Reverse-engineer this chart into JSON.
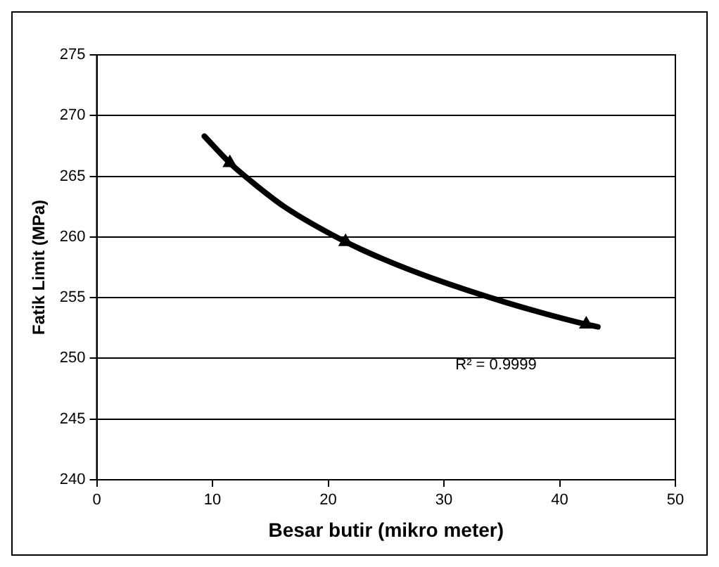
{
  "chart_data": {
    "type": "scatter",
    "xlabel": "Besar butir (mikro meter)",
    "ylabel": "Fatik Limit (MPa)",
    "xlim": [
      0,
      50
    ],
    "xticks": [
      0,
      10,
      20,
      30,
      40,
      50
    ],
    "ylim": [
      240,
      275
    ],
    "yticks": [
      240,
      245,
      250,
      255,
      260,
      265,
      270,
      275
    ],
    "grid": "y",
    "legend": false,
    "marker": "triangle",
    "series": [
      {
        "type": "line",
        "color": "#000000",
        "marker": "none",
        "x": [
          9.3,
          11.5,
          13.2,
          16.2,
          21.5,
          24.7,
          29.0,
          35.4,
          42.3,
          43.3
        ],
        "values": [
          268.3,
          266.1,
          264.7,
          262.5,
          259.6,
          258.2,
          256.6,
          254.6,
          252.8,
          252.6
        ]
      },
      {
        "type": "scatter",
        "color": "#000000",
        "x": [
          11.5,
          21.5,
          42.3
        ],
        "values": [
          266.1,
          259.6,
          252.8
        ]
      }
    ],
    "annotations": [
      "R² = 0.9999"
    ]
  }
}
